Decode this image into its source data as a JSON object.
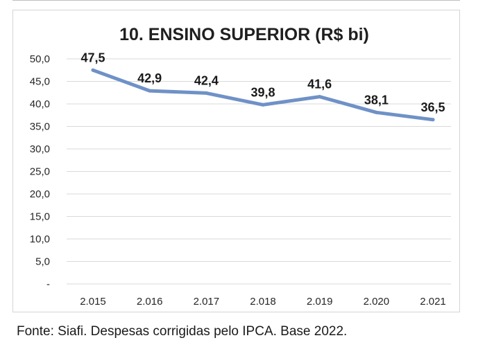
{
  "chart_data": {
    "type": "line",
    "title": "10. ENSINO SUPERIOR (R$ bi)",
    "categories": [
      "2.015",
      "2.016",
      "2.017",
      "2.018",
      "2.019",
      "2.020",
      "2.021"
    ],
    "series": [
      {
        "values": [
          47.5,
          42.9,
          42.4,
          39.8,
          41.6,
          38.1,
          36.5
        ],
        "labels": [
          "47,5",
          "42,9",
          "42,4",
          "39,8",
          "41,6",
          "38,1",
          "36,5"
        ],
        "color": "#6f91c7"
      }
    ],
    "ylim": [
      0,
      50
    ],
    "yticks": [
      0,
      5,
      10,
      15,
      20,
      25,
      30,
      35,
      40,
      45,
      50
    ],
    "ytick_labels": [
      "-",
      "5,0",
      "10,0",
      "15,0",
      "20,0",
      "25,0",
      "30,0",
      "35,0",
      "40,0",
      "45,0",
      "50,0"
    ],
    "grid": true,
    "legend": "none",
    "xlabel": "",
    "ylabel": ""
  },
  "source_note": "Fonte: Siafi. Despesas corrigidas pelo IPCA. Base 2022."
}
